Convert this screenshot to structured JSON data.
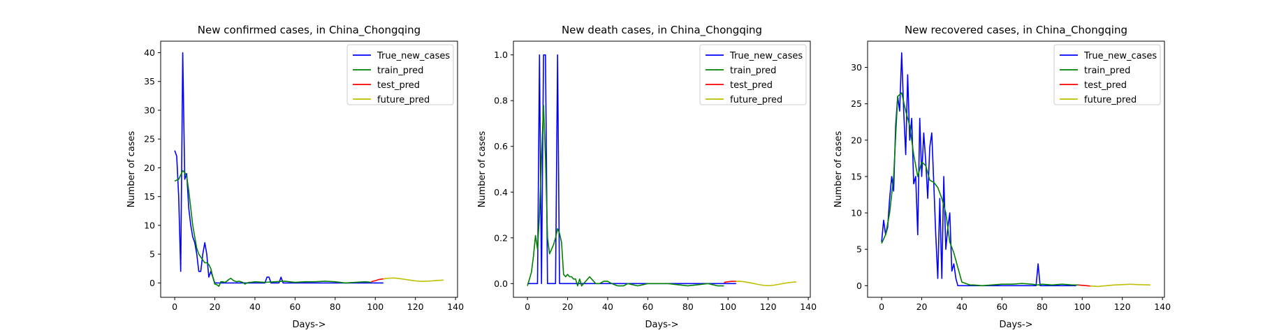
{
  "figure": {
    "background": "#ffffff"
  },
  "chart_data": [
    {
      "type": "line",
      "title": "New confirmed cases, in China_Chongqing",
      "xlabel": "Days->",
      "ylabel": "Number of cases",
      "xlim": [
        -7,
        141
      ],
      "ylim": [
        -2.5,
        42
      ],
      "xticks": [
        0,
        20,
        40,
        60,
        80,
        100,
        120,
        140
      ],
      "yticks": [
        0,
        5,
        10,
        15,
        20,
        25,
        30,
        35,
        40
      ],
      "legend": "top-right",
      "grid": false,
      "series": [
        {
          "name": "True_new_cases",
          "color": "#0000ff",
          "x": [
            0,
            1,
            2,
            3,
            4,
            5,
            6,
            7,
            8,
            9,
            10,
            11,
            12,
            13,
            14,
            15,
            16,
            17,
            18,
            19,
            20,
            21,
            22,
            23,
            24,
            25,
            26,
            27,
            28,
            29,
            30,
            35,
            40,
            45,
            46,
            47,
            48,
            50,
            52,
            53,
            54,
            55,
            60,
            70,
            80,
            90,
            100,
            104
          ],
          "y": [
            23,
            22,
            15,
            2,
            40,
            18,
            19,
            13,
            10,
            8,
            7,
            5,
            2,
            2,
            5,
            7,
            5,
            1,
            2,
            1,
            0,
            0,
            0,
            0,
            0,
            0,
            0,
            0,
            0,
            0,
            0,
            0,
            0,
            0,
            1,
            1,
            0,
            0,
            0,
            1,
            0,
            0,
            0,
            0,
            0,
            0,
            0,
            0
          ]
        },
        {
          "name": "train_pred",
          "color": "#008000",
          "x": [
            0,
            2,
            4,
            5,
            6,
            7,
            8,
            9,
            10,
            11,
            12,
            13,
            14,
            15,
            16,
            17,
            18,
            19,
            20,
            21,
            22,
            23,
            24,
            25,
            26,
            27,
            28,
            29,
            30,
            31,
            32,
            33,
            34,
            35,
            36,
            37,
            38,
            40,
            45,
            50,
            55,
            60,
            65,
            70,
            75,
            80,
            85,
            90,
            95,
            98
          ],
          "y": [
            17.7,
            18.0,
            19.5,
            19.2,
            18.5,
            16,
            13,
            10,
            8,
            6,
            5,
            4.5,
            4,
            3.5,
            3.5,
            3.2,
            2.5,
            1,
            -0.2,
            -0.3,
            -0.6,
            0.2,
            0.2,
            0.1,
            0.3,
            0.6,
            0.8,
            0.5,
            0.3,
            0.2,
            0.3,
            0.2,
            0.1,
            -0.2,
            0,
            0.1,
            0.1,
            0.2,
            0.1,
            0.2,
            0.3,
            0.1,
            0.2,
            0.2,
            0.3,
            0.2,
            0,
            0.1,
            0.2,
            0.1
          ]
        },
        {
          "name": "test_pred",
          "color": "#ff0000",
          "x": [
            98,
            100,
            102,
            104
          ],
          "y": [
            0.2,
            0.4,
            0.6,
            0.7
          ]
        },
        {
          "name": "future_pred",
          "color": "#bfbf00",
          "x": [
            104,
            106,
            108,
            110,
            112,
            114,
            116,
            118,
            120,
            122,
            124,
            126,
            128,
            130,
            132,
            134
          ],
          "y": [
            0.7,
            0.8,
            0.85,
            0.85,
            0.75,
            0.65,
            0.55,
            0.45,
            0.35,
            0.3,
            0.28,
            0.3,
            0.35,
            0.4,
            0.45,
            0.5
          ]
        }
      ]
    },
    {
      "type": "line",
      "title": "New death cases, in China_Chongqing",
      "xlabel": "Days->",
      "ylabel": "Number of cases",
      "xlim": [
        -7,
        141
      ],
      "ylim": [
        -0.06,
        1.06
      ],
      "xticks": [
        0,
        20,
        40,
        60,
        80,
        100,
        120,
        140
      ],
      "yticks": [
        0.0,
        0.2,
        0.4,
        0.6,
        0.8,
        1.0
      ],
      "ytick_labels": [
        "0.0",
        "0.2",
        "0.4",
        "0.6",
        "0.8",
        "1.0"
      ],
      "legend": "top-right",
      "grid": false,
      "series": [
        {
          "name": "True_new_cases",
          "color": "#0000ff",
          "x": [
            0,
            4,
            5,
            6,
            7,
            8,
            9,
            10,
            14,
            15,
            16,
            20,
            40,
            60,
            80,
            100,
            104
          ],
          "y": [
            0,
            0,
            0,
            1,
            0,
            1,
            1,
            0,
            0,
            1,
            0,
            0,
            0,
            0,
            0,
            0,
            0
          ]
        },
        {
          "name": "train_pred",
          "color": "#008000",
          "x": [
            0,
            2,
            3,
            4,
            5,
            6,
            7,
            8,
            9,
            10,
            11,
            12,
            13,
            14,
            15,
            16,
            17,
            18,
            19,
            20,
            21,
            22,
            23,
            24,
            25,
            26,
            27,
            28,
            29,
            30,
            31,
            32,
            33,
            34,
            35,
            36,
            38,
            40,
            42,
            45,
            48,
            50,
            55,
            60,
            70,
            80,
            90,
            95,
            98
          ],
          "y": [
            -0.01,
            0.05,
            0.12,
            0.21,
            0.15,
            0.3,
            0.55,
            0.78,
            0.55,
            0.2,
            0.13,
            0.15,
            0.17,
            0.2,
            0.24,
            0.22,
            0.18,
            0.04,
            0.03,
            0.04,
            0.03,
            0.03,
            0.02,
            0.02,
            -0.01,
            0.02,
            -0.01,
            0,
            0.01,
            0.02,
            0.03,
            0.02,
            0.01,
            0,
            0,
            0,
            0.01,
            0.01,
            0,
            -0.01,
            -0.01,
            0,
            -0.01,
            0,
            0,
            -0.01,
            0,
            -0.01,
            -0.01
          ]
        },
        {
          "name": "test_pred",
          "color": "#ff0000",
          "x": [
            98,
            100,
            102,
            104
          ],
          "y": [
            0.005,
            0.008,
            0.01,
            0.01
          ]
        },
        {
          "name": "future_pred",
          "color": "#bfbf00",
          "x": [
            104,
            106,
            108,
            110,
            112,
            114,
            116,
            118,
            120,
            122,
            124,
            126,
            128,
            130,
            132,
            134
          ],
          "y": [
            0.01,
            0.01,
            0.008,
            0.005,
            0.002,
            -0.002,
            -0.005,
            -0.008,
            -0.009,
            -0.008,
            -0.005,
            -0.002,
            0.001,
            0.004,
            0.006,
            0.007
          ]
        }
      ]
    },
    {
      "type": "line",
      "title": "New recovered cases, in China_Chongqing",
      "xlabel": "Days->",
      "ylabel": "Number of cases",
      "xlim": [
        -7,
        141
      ],
      "ylim": [
        -1.6,
        33.6
      ],
      "xticks": [
        0,
        20,
        40,
        60,
        80,
        100,
        120,
        140
      ],
      "yticks": [
        0,
        5,
        10,
        15,
        20,
        25,
        30
      ],
      "legend": "top-right",
      "grid": false,
      "series": [
        {
          "name": "True_new_cases",
          "color": "#0000ff",
          "x": [
            0,
            1,
            2,
            3,
            4,
            5,
            6,
            7,
            8,
            9,
            10,
            11,
            12,
            13,
            14,
            15,
            16,
            17,
            18,
            19,
            20,
            21,
            22,
            23,
            24,
            25,
            26,
            27,
            28,
            29,
            30,
            31,
            32,
            33,
            34,
            35,
            36,
            37,
            38,
            40,
            42,
            45,
            60,
            77,
            78,
            79,
            80,
            97
          ],
          "y": [
            6,
            9,
            7,
            8,
            12,
            15,
            13,
            22,
            26,
            24,
            32,
            24,
            18,
            29,
            20,
            23,
            14,
            15,
            7,
            23,
            15,
            21,
            17,
            12,
            19,
            21,
            14,
            7,
            1,
            12,
            1,
            15,
            5,
            8,
            10,
            2,
            3,
            1,
            0,
            0,
            0,
            0,
            0,
            0,
            3,
            0,
            0,
            0
          ]
        },
        {
          "name": "train_pred",
          "color": "#008000",
          "x": [
            0,
            2,
            4,
            6,
            8,
            10,
            12,
            14,
            16,
            18,
            20,
            22,
            24,
            26,
            28,
            30,
            32,
            34,
            36,
            38,
            40,
            42,
            44,
            46,
            50,
            55,
            60,
            65,
            70,
            75,
            78,
            80,
            85,
            90,
            95,
            98
          ],
          "y": [
            5.8,
            7,
            10,
            15,
            26,
            26.5,
            24,
            22,
            18,
            15,
            17,
            16.5,
            14.5,
            14.2,
            13.5,
            12,
            10,
            6,
            4.5,
            2.5,
            0.5,
            0.3,
            0.1,
            0.1,
            0,
            0.1,
            0.2,
            0.2,
            0.3,
            0.2,
            0.1,
            0.2,
            0.1,
            0.2,
            0.1,
            0.1
          ]
        },
        {
          "name": "test_pred",
          "color": "#ff0000",
          "x": [
            98,
            100,
            102,
            104
          ],
          "y": [
            0.1,
            0.05,
            0,
            -0.05
          ]
        },
        {
          "name": "future_pred",
          "color": "#bfbf00",
          "x": [
            104,
            108,
            112,
            116,
            120,
            124,
            128,
            134
          ],
          "y": [
            -0.05,
            -0.1,
            0,
            0.1,
            0.15,
            0.2,
            0.15,
            0.1
          ]
        }
      ]
    }
  ]
}
